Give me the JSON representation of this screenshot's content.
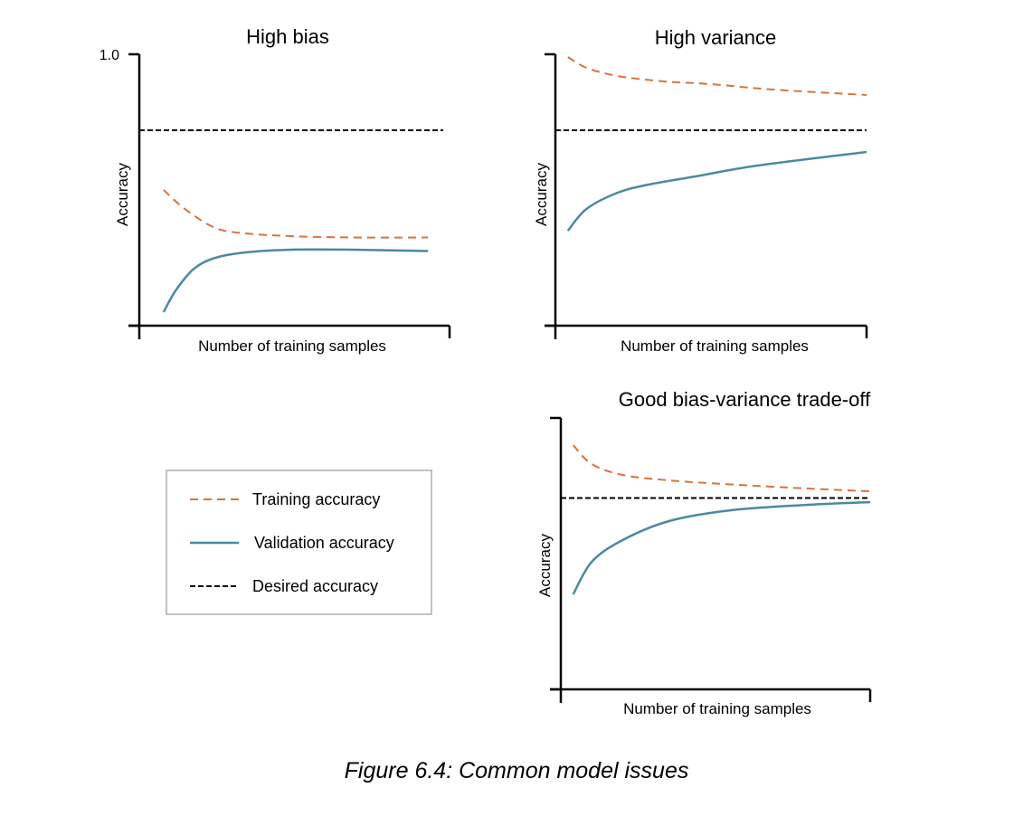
{
  "colors": {
    "training": "#d8733a",
    "validation": "#4a8aa0",
    "desired": "#000000",
    "axis": "#000000"
  },
  "legend": {
    "items": [
      {
        "key": "training",
        "label": "Training accuracy",
        "style": "dashed"
      },
      {
        "key": "validation",
        "label": "Validation accuracy",
        "style": "solid"
      },
      {
        "key": "desired",
        "label": "Desired accuracy",
        "style": "dashed"
      }
    ]
  },
  "caption": "Figure 6.4: Common model issues",
  "chart_data": [
    {
      "type": "line",
      "title": "High bias",
      "xlabel": "Number of training samples",
      "ylabel": "Accuracy",
      "ylim": [
        0,
        1.0
      ],
      "xlim": [
        0,
        1
      ],
      "yticks": [
        {
          "value": 1.0,
          "label": "1.0"
        },
        {
          "value": 0,
          "label": ""
        }
      ],
      "grid": false,
      "series": [
        {
          "key": "training",
          "name": "Training accuracy",
          "x": [
            0.08,
            0.15,
            0.25,
            0.35,
            0.5,
            0.7,
            0.95
          ],
          "y": [
            0.5,
            0.43,
            0.36,
            0.34,
            0.33,
            0.325,
            0.325
          ]
        },
        {
          "key": "validation",
          "name": "Validation accuracy",
          "x": [
            0.08,
            0.12,
            0.18,
            0.25,
            0.35,
            0.5,
            0.7,
            0.95
          ],
          "y": [
            0.05,
            0.13,
            0.21,
            0.25,
            0.27,
            0.28,
            0.28,
            0.275
          ]
        },
        {
          "key": "desired",
          "name": "Desired accuracy",
          "x": [
            0,
            1
          ],
          "y": [
            0.72,
            0.72
          ]
        }
      ]
    },
    {
      "type": "line",
      "title": "High variance",
      "xlabel": "Number of training samples",
      "ylabel": "Accuracy",
      "ylim": [
        0,
        1.0
      ],
      "xlim": [
        0,
        1
      ],
      "yticks": [
        {
          "value": 1.0,
          "label": ""
        },
        {
          "value": 0,
          "label": ""
        }
      ],
      "grid": false,
      "series": [
        {
          "key": "training",
          "name": "Training accuracy",
          "x": [
            0.04,
            0.1,
            0.2,
            0.35,
            0.5,
            0.7,
            1.0
          ],
          "y": [
            0.99,
            0.95,
            0.92,
            0.9,
            0.89,
            0.87,
            0.85
          ]
        },
        {
          "key": "validation",
          "name": "Validation accuracy",
          "x": [
            0.04,
            0.1,
            0.2,
            0.3,
            0.45,
            0.65,
            1.0
          ],
          "y": [
            0.35,
            0.43,
            0.49,
            0.52,
            0.55,
            0.59,
            0.64
          ]
        },
        {
          "key": "desired",
          "name": "Desired accuracy",
          "x": [
            0,
            1
          ],
          "y": [
            0.72,
            0.72
          ]
        }
      ]
    },
    {
      "type": "line",
      "title": "Good bias-variance trade-off",
      "xlabel": "Number of training samples",
      "ylabel": "Accuracy",
      "ylim": [
        0,
        1.0
      ],
      "xlim": [
        0,
        1
      ],
      "yticks": [
        {
          "value": 1.0,
          "label": ""
        },
        {
          "value": 0,
          "label": ""
        }
      ],
      "grid": false,
      "series": [
        {
          "key": "training",
          "name": "Training accuracy",
          "x": [
            0.04,
            0.1,
            0.2,
            0.35,
            0.55,
            0.8,
            1.0
          ],
          "y": [
            0.9,
            0.83,
            0.79,
            0.77,
            0.755,
            0.74,
            0.73
          ]
        },
        {
          "key": "validation",
          "name": "Validation accuracy",
          "x": [
            0.04,
            0.1,
            0.2,
            0.35,
            0.55,
            0.8,
            1.0
          ],
          "y": [
            0.35,
            0.47,
            0.55,
            0.62,
            0.66,
            0.68,
            0.69
          ]
        },
        {
          "key": "desired",
          "name": "Desired accuracy",
          "x": [
            0,
            1
          ],
          "y": [
            0.705,
            0.705
          ]
        }
      ]
    }
  ]
}
